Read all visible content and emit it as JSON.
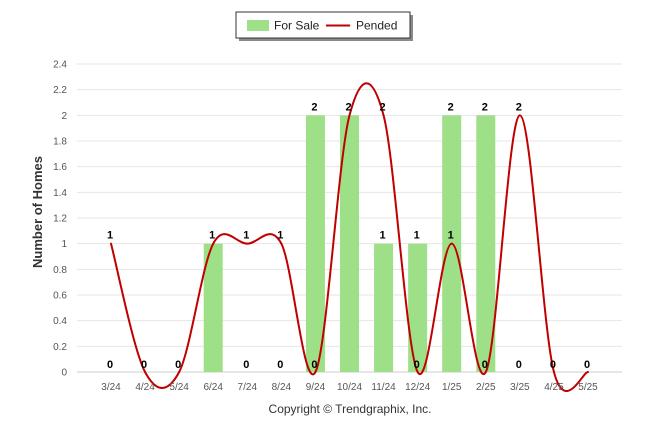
{
  "chart_data": {
    "type": "bar",
    "title": "",
    "xlabel": "",
    "ylabel": "Number of Homes",
    "footer": "Copyright © Trendgraphix, Inc.",
    "categories": [
      "3/24",
      "4/24",
      "5/24",
      "6/24",
      "7/24",
      "8/24",
      "9/24",
      "10/24",
      "11/24",
      "12/24",
      "1/25",
      "2/25",
      "3/25",
      "4/25",
      "5/25"
    ],
    "ylim": [
      0,
      2.4
    ],
    "yticks": [
      "0",
      "0.2",
      "0.4",
      "0.6",
      "0.8",
      "1",
      "1.2",
      "1.4",
      "1.6",
      "1.8",
      "2",
      "2.2",
      "2.4"
    ],
    "grid": true,
    "legend_position": "top-center",
    "series": [
      {
        "name": "For Sale",
        "type": "bar",
        "color": "#9ee087",
        "values": [
          0,
          0,
          0,
          1,
          0,
          0,
          2,
          2,
          1,
          1,
          2,
          2,
          0,
          0,
          0
        ]
      },
      {
        "name": "Pended",
        "type": "line",
        "smooth": true,
        "color": "#c00000",
        "values": [
          1,
          0,
          0,
          1,
          1,
          1,
          0,
          2,
          2,
          0,
          1,
          0,
          2,
          0,
          0
        ]
      }
    ],
    "data_labels": [
      {
        "value": "1",
        "category": "3/24",
        "y": 1
      },
      {
        "value": "1",
        "category": "6/24",
        "y": 1
      },
      {
        "value": "1",
        "category": "7/24",
        "y": 1
      },
      {
        "value": "1",
        "category": "8/24",
        "y": 1
      },
      {
        "value": "2",
        "category": "9/24",
        "y": 2
      },
      {
        "value": "2",
        "category": "10/24",
        "y": 2
      },
      {
        "value": "2",
        "category": "11/24",
        "y": 2
      },
      {
        "value": "1",
        "category": "11/24",
        "y": 1
      },
      {
        "value": "1",
        "category": "12/24",
        "y": 1
      },
      {
        "value": "2",
        "category": "1/25",
        "y": 2
      },
      {
        "value": "1",
        "category": "1/25",
        "y": 1
      },
      {
        "value": "2",
        "category": "2/25",
        "y": 2
      },
      {
        "value": "2",
        "category": "3/25",
        "y": 2
      },
      {
        "value": "0",
        "category": "3/24",
        "y": 0
      },
      {
        "value": "0",
        "category": "4/24",
        "y": 0
      },
      {
        "value": "0",
        "category": "5/24",
        "y": 0
      },
      {
        "value": "0",
        "category": "7/24",
        "y": 0
      },
      {
        "value": "0",
        "category": "8/24",
        "y": 0
      },
      {
        "value": "0",
        "category": "9/24",
        "y": 0
      },
      {
        "value": "0",
        "category": "12/24",
        "y": 0
      },
      {
        "value": "0",
        "category": "2/25",
        "y": 0
      },
      {
        "value": "0",
        "category": "3/25",
        "y": 0
      },
      {
        "value": "0",
        "category": "4/25",
        "y": 0
      },
      {
        "value": "0",
        "category": "5/25",
        "y": 0
      }
    ]
  }
}
